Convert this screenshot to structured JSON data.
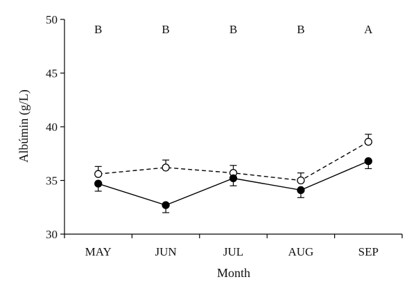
{
  "chart_data": {
    "type": "line",
    "title": "",
    "xlabel": "Month",
    "ylabel": "Albúmin (g/L)",
    "categories": [
      "MAY",
      "JUN",
      "JUL",
      "AUG",
      "SEP"
    ],
    "ylim": [
      30,
      50
    ],
    "yticks": [
      30,
      35,
      40,
      45,
      50
    ],
    "grid": false,
    "legend": "none",
    "significance_letters": [
      "B",
      "B",
      "B",
      "B",
      "A"
    ],
    "series": [
      {
        "marker": "open-circle",
        "line_style": "dashed",
        "values": [
          35.6,
          36.2,
          35.7,
          35.0,
          38.6
        ],
        "errors": [
          0.7,
          0.7,
          0.7,
          0.7,
          0.7
        ]
      },
      {
        "marker": "filled-circle",
        "line_style": "solid",
        "values": [
          34.7,
          32.7,
          35.2,
          34.1,
          36.8
        ],
        "errors": [
          0.7,
          0.7,
          0.7,
          0.7,
          0.7
        ]
      }
    ],
    "colors": {
      "line": "#000000",
      "marker_fill_filled": "#000000",
      "marker_fill_open": "#ffffff"
    }
  }
}
